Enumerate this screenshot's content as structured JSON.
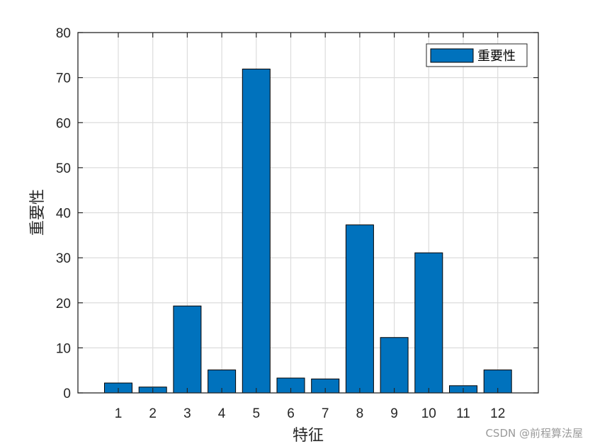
{
  "chart_data": {
    "type": "bar",
    "categories": [
      "1",
      "2",
      "3",
      "4",
      "5",
      "6",
      "7",
      "8",
      "9",
      "10",
      "11",
      "12"
    ],
    "series": [
      {
        "name": "重要性",
        "color": "#0072BD",
        "values": [
          2.2,
          1.3,
          19.3,
          5.1,
          71.9,
          3.3,
          3.1,
          37.3,
          12.3,
          31.1,
          1.6,
          5.1
        ]
      }
    ],
    "xlabel": "特征",
    "ylabel": "重要性",
    "ylim": [
      0,
      80
    ],
    "yticks": [
      0,
      10,
      20,
      30,
      40,
      50,
      60,
      70,
      80
    ],
    "grid": true,
    "legend_position": "top-right"
  },
  "watermark": "CSDN @前程算法屋"
}
